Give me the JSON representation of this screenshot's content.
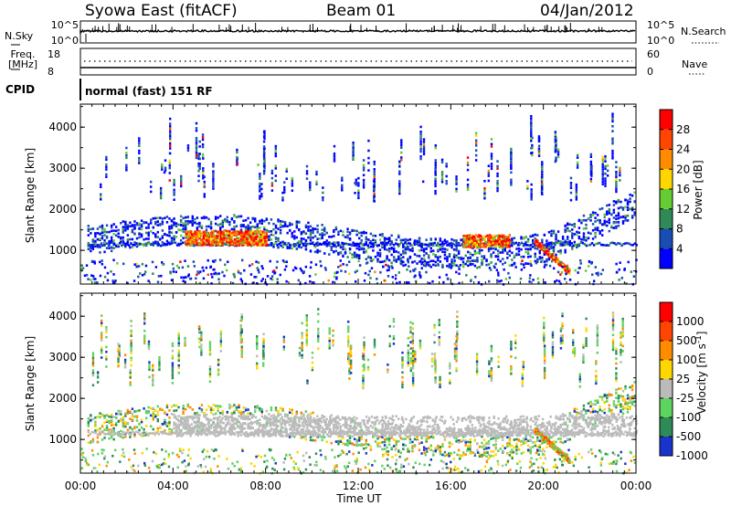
{
  "header": {
    "station": "Syowa East (fitACF)",
    "beam": "Beam 01",
    "date": "04/Jan/2012"
  },
  "panels": {
    "nsky": {
      "label": "N.Sky",
      "right_label": "N.Search",
      "ytick_top": "10^5",
      "ytick_bottom": "10^0",
      "right_tick_top": "10^5",
      "right_tick_bottom": "10^0"
    },
    "freq": {
      "label_line1": "Freq.",
      "label_line2": "[MHz]",
      "right_label": "Nave",
      "ytick_top": "18",
      "ytick_bottom": "8",
      "right_tick_top": "60",
      "right_tick_bottom": "0"
    },
    "cpid": {
      "label": "CPID",
      "text": "normal (fast) 151 RF"
    }
  },
  "chart_data": [
    {
      "type": "heatmap",
      "name": "power",
      "xlabel": "",
      "ylabel": "Slant Range [km]",
      "x_ticks": [
        "00:00",
        "04:00",
        "08:00",
        "12:00",
        "16:00",
        "20:00",
        "00:00"
      ],
      "x_range_hours": [
        0,
        24
      ],
      "y_ticks": [
        1000,
        2000,
        3000,
        4000
      ],
      "y_range_km": [
        180,
        4560
      ],
      "colorbar": {
        "label": "Power [dB]",
        "ticks": [
          "4",
          "8",
          "12",
          "16",
          "20",
          "24",
          "28"
        ],
        "colors": [
          "#0000ff",
          "#1a4db3",
          "#2e8b57",
          "#66cc33",
          "#ffd700",
          "#ff8c00",
          "#ff4500",
          "#ff0000"
        ]
      },
      "features": [
        {
          "desc": "ionospheric band",
          "start_h": 0.5,
          "end_h": 23.8,
          "range_km": [
            1000,
            2100
          ],
          "peak_power_db": 28
        },
        {
          "desc": "strong echo",
          "start_h": 4.5,
          "end_h": 8.0,
          "range_km": [
            1100,
            1500
          ],
          "peak_power_db": 28
        },
        {
          "desc": "strong echo",
          "start_h": 16.5,
          "end_h": 18.5,
          "range_km": [
            1100,
            1400
          ],
          "peak_power_db": 24
        }
      ]
    },
    {
      "type": "heatmap",
      "name": "velocity",
      "xlabel": "Time UT",
      "ylabel": "Slant Range [km]",
      "x_ticks": [
        "00:00",
        "04:00",
        "08:00",
        "12:00",
        "16:00",
        "20:00",
        "00:00"
      ],
      "x_range_hours": [
        0,
        24
      ],
      "y_ticks": [
        1000,
        2000,
        3000,
        4000
      ],
      "y_range_km": [
        180,
        4560
      ],
      "colorbar": {
        "label": "Velocity [m s^-1]",
        "ticks": [
          "1000",
          "500",
          "100",
          "25",
          "-25",
          "-100",
          "-500",
          "-1000"
        ],
        "colors": [
          "#1a33cc",
          "#2e8b57",
          "#5fd35f",
          "#bbbbbb",
          "#ffd700",
          "#ff8c00",
          "#ff4500",
          "#ff0000"
        ]
      },
      "features": [
        {
          "desc": "ground scatter band",
          "start_h": 4.0,
          "end_h": 24.0,
          "range_km": [
            1100,
            1600
          ],
          "velocity_ms": 0
        }
      ]
    }
  ]
}
